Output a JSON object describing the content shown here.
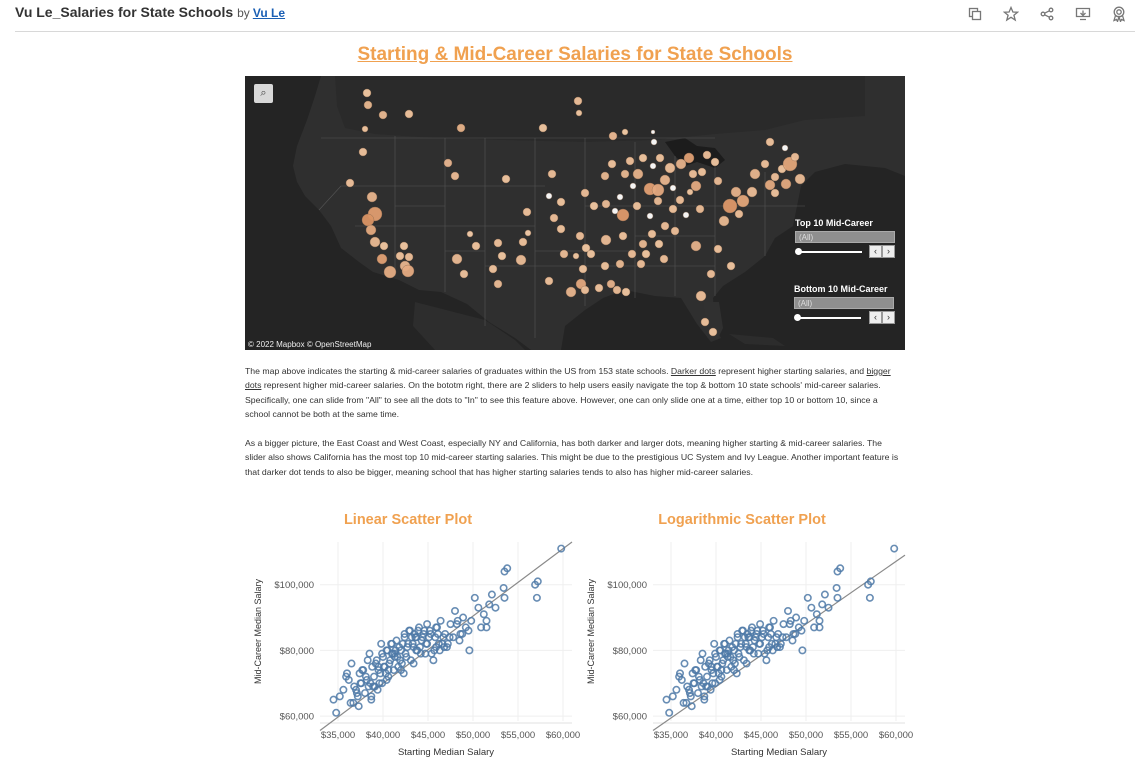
{
  "window": {
    "title": "Vu Le_Salaries for State Schools",
    "by_label": "by",
    "author": "Vu Le",
    "icons": [
      "copy-icon",
      "star-icon",
      "share-icon",
      "download-icon",
      "badge-icon"
    ]
  },
  "dashboard": {
    "heading": "Starting & Mid-Career Salaries for State Schools",
    "map": {
      "attribution": "© 2022 Mapbox  © OpenStreetMap",
      "zoom_icon": "search-icon",
      "filters": [
        {
          "title": "Top 10 Mid-Career",
          "value": "(All)"
        },
        {
          "title": "Bottom 10 Mid-Career",
          "value": "(All)"
        }
      ]
    },
    "paragraph1": {
      "t1": "The map above indicates the starting & mid-career salaries of graduates within the US from 153 state schools. ",
      "u1": "Darker dots",
      "t2": " represent higher starting salaries, and ",
      "u2": "bigger dots",
      "t3": " represent higher mid-career salaries. On the bototm right, there are 2 sliders to help users easily navigate the top & bottom 10 state schools' mid-career salaries. Specifically, one can slide from \"All\" to see all the dots to \"In\" to see this feature above. However, one can only slide one at a time, either top 10 or bottom 10, since a school cannot be both at the same time."
    },
    "paragraph2": "As a bigger picture, the East Coast and West Coast, especially NY and California, has both darker and larger dots, meaning higher starting & mid-career salaries. The slider also shows California has the most top 10 mid-career starting salaries. This might be due to the prestigious UC System and Ivy League. Another important feature is that darker dot tends to also be bigger, meaning school that has higher starting salaries tends to also has higher mid-career salaries."
  },
  "chart_data": [
    {
      "type": "scatter",
      "title": "Linear Scatter Plot",
      "xlabel": "Starting Median Salary",
      "ylabel": "Mid-Career Median Salary",
      "xlim": [
        33000,
        61000
      ],
      "ylim": [
        58500,
        113000
      ],
      "xticks": [
        35000,
        40000,
        45000,
        50000,
        55000,
        60000
      ],
      "xtick_labels": [
        "$35,000",
        "$40,000",
        "$45,000",
        "$50,000",
        "$55,000",
        "$60,000"
      ],
      "yticks": [
        60000,
        80000,
        100000
      ],
      "ytick_labels": [
        "$60,000",
        "$80,000",
        "$100,000"
      ],
      "trend_line": {
        "x": [
          33000,
          61000
        ],
        "y": [
          55600,
          113000
        ]
      },
      "marker_color": "#4e79a7",
      "series": [
        {
          "x": [
            59800,
            57200,
            57100,
            56900,
            53800,
            53500,
            53400,
            53500,
            52100,
            51800,
            52500,
            51200,
            51500,
            51500,
            50200,
            49800,
            48900,
            49500,
            48200,
            48800,
            48500,
            48000,
            47500,
            46900,
            47200,
            46400,
            46800,
            46000,
            45200,
            45800,
            44900,
            44500,
            44800,
            44000,
            43500,
            43800,
            43200,
            42800,
            43000,
            42500,
            42200,
            42400,
            41900,
            42000,
            41500,
            41800,
            41200,
            41000,
            40800,
            40500,
            40700,
            40300,
            40000,
            40200,
            39800,
            39500,
            39600,
            39200,
            39000,
            38800,
            38500,
            38200,
            38000,
            37800,
            37500,
            37400,
            37000,
            36800,
            36500,
            36200,
            36000,
            35600,
            35200,
            34800,
            46300,
            46700,
            45400,
            44300,
            43700,
            43100,
            42700,
            41700,
            40900,
            39900,
            38400,
            47800,
            49200,
            50600,
            45100,
            44600,
            43400,
            42900,
            41600,
            40600,
            39300,
            38700,
            37600,
            44100,
            45600,
            46100,
            43900,
            42300,
            41100,
            40400,
            39700,
            38900,
            36700,
            35900,
            48600,
            47100,
            45900,
            44700,
            43300,
            42100,
            41400,
            40100,
            39100,
            38100,
            37200,
            46600,
            45300,
            44200,
            43600,
            42600,
            41300,
            40600,
            39400,
            38300,
            37700,
            36400,
            34500,
            50900,
            49600,
            48300,
            47400,
            46200,
            45700,
            44400,
            43400,
            42400,
            41300,
            40400,
            39500,
            38600,
            37100,
            43700,
            44900,
            42000,
            41000,
            39900,
            38700,
            37300,
            45900
          ],
          "y": [
            111000,
            101000,
            96000,
            100000,
            105000,
            104000,
            99000,
            96000,
            97000,
            94000,
            93000,
            91000,
            89000,
            87000,
            96000,
            89000,
            90000,
            86000,
            88000,
            85000,
            83000,
            92000,
            88000,
            85000,
            82000,
            89000,
            81000,
            87000,
            86000,
            84000,
            88000,
            85000,
            82000,
            87000,
            85000,
            80000,
            84000,
            82000,
            86000,
            79000,
            82000,
            84000,
            77000,
            80000,
            83000,
            81000,
            74000,
            79000,
            77000,
            80000,
            76000,
            73000,
            78000,
            75000,
            82000,
            74000,
            70000,
            76000,
            72000,
            75000,
            79000,
            71000,
            67000,
            74000,
            70000,
            73000,
            68000,
            69000,
            76000,
            71000,
            73000,
            68000,
            66000,
            61000,
            80000,
            84000,
            79000,
            83000,
            80000,
            77000,
            81000,
            75000,
            82000,
            79000,
            69000,
            84000,
            87000,
            93000,
            84000,
            86000,
            76000,
            86000,
            78000,
            72000,
            77000,
            65000,
            70000,
            81000,
            77000,
            85000,
            86000,
            73000,
            79000,
            71000,
            73000,
            69000,
            64000,
            72000,
            85000,
            81000,
            87000,
            79000,
            82000,
            76000,
            80000,
            75000,
            69000,
            72000,
            66000,
            82000,
            85000,
            79000,
            84000,
            78000,
            78000,
            74000,
            68000,
            77000,
            74000,
            64000,
            65000,
            87000,
            80000,
            89000,
            84000,
            82000,
            80000,
            84000,
            81000,
            85000,
            79000,
            80000,
            75000,
            70000,
            67000,
            84000,
            82000,
            74000,
            82000,
            70000,
            66000,
            63000,
            81000
          ]
        }
      ]
    },
    {
      "type": "scatter",
      "title": "Logarithmic Scatter Plot",
      "xlabel": "Starting Median Salary",
      "ylabel": "Mid-Career Median Salary",
      "xlim": [
        33000,
        61000
      ],
      "ylim": [
        58500,
        113000
      ],
      "xticks": [
        35000,
        40000,
        45000,
        50000,
        55000,
        60000
      ],
      "xtick_labels": [
        "$35,000",
        "$40,000",
        "$45,000",
        "$50,000",
        "$55,000",
        "$60,000"
      ],
      "yticks": [
        60000,
        80000,
        100000
      ],
      "ytick_labels": [
        "$60,000",
        "$80,000",
        "$100,000"
      ],
      "trend_line": {
        "x": [
          33000,
          61000
        ],
        "y": [
          55600,
          109000
        ]
      },
      "marker_color": "#4e79a7",
      "series": [
        {
          "ref": 0
        }
      ]
    }
  ]
}
